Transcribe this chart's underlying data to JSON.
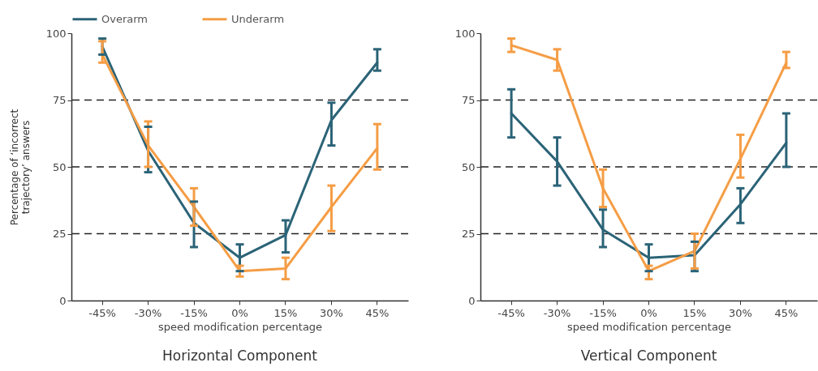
{
  "chart_data": [
    {
      "type": "line",
      "title": "Horizontal Component",
      "xlabel": "speed modification percentage",
      "ylabel": "Percentage of ‘incorrect trajectory’ answers",
      "categories": [
        "-45%",
        "-30%",
        "-15%",
        "0%",
        "15%",
        "30%",
        "45%"
      ],
      "ylim": [
        0,
        100
      ],
      "yticks": [
        0,
        25,
        50,
        75,
        100
      ],
      "legend": "top",
      "ref_lines": [
        {
          "axis": "y",
          "value": 25,
          "color": "#222222",
          "line_style": "dashed"
        },
        {
          "axis": "y",
          "value": 50,
          "color": "#222222",
          "line_style": "dashed"
        },
        {
          "axis": "y",
          "value": 75,
          "color": "#222222",
          "line_style": "dashed"
        }
      ],
      "series": [
        {
          "name": "Overarm",
          "color": "#2b6377",
          "values": [
            95,
            56,
            29,
            16,
            24.5,
            67.5,
            89
          ],
          "errors": [
            [
              92,
              98
            ],
            [
              48,
              65
            ],
            [
              20,
              37
            ],
            [
              11,
              21
            ],
            [
              18,
              30
            ],
            [
              58,
              74
            ],
            [
              86,
              94
            ]
          ]
        },
        {
          "name": "Underarm",
          "color": "#f59d45",
          "values": [
            92,
            58,
            35,
            11,
            12,
            35,
            57
          ],
          "errors": [
            [
              89,
              97
            ],
            [
              50,
              67
            ],
            [
              28,
              42
            ],
            [
              9,
              13
            ],
            [
              8,
              16
            ],
            [
              26,
              43
            ],
            [
              49,
              66
            ]
          ]
        }
      ]
    },
    {
      "type": "line",
      "title": "Vertical Component",
      "xlabel": "speed modification percentage",
      "categories": [
        "-45%",
        "-30%",
        "-15%",
        "0%",
        "15%",
        "30%",
        "45%"
      ],
      "ylim": [
        0,
        100
      ],
      "yticks": [
        0,
        25,
        50,
        75,
        100
      ],
      "ref_lines": [
        {
          "axis": "y",
          "value": 25,
          "color": "#222222",
          "line_style": "dashed"
        },
        {
          "axis": "y",
          "value": 50,
          "color": "#222222",
          "line_style": "dashed"
        },
        {
          "axis": "y",
          "value": 75,
          "color": "#222222",
          "line_style": "dashed"
        }
      ],
      "series": [
        {
          "color": "#2b6377",
          "values": [
            70,
            52,
            26.5,
            16,
            17,
            36,
            59
          ],
          "errors": [
            [
              61,
              79
            ],
            [
              43,
              61
            ],
            [
              20,
              34
            ],
            [
              11,
              21
            ],
            [
              11,
              22
            ],
            [
              29,
              42
            ],
            [
              50,
              70
            ]
          ]
        },
        {
          "color": "#f59d45",
          "values": [
            95.5,
            90,
            42,
            11,
            18.5,
            53,
            89
          ],
          "errors": [
            [
              93,
              98
            ],
            [
              86,
              94
            ],
            [
              35,
              49
            ],
            [
              8,
              13
            ],
            [
              12,
              25
            ],
            [
              46,
              62
            ],
            [
              87,
              93
            ]
          ]
        }
      ]
    }
  ]
}
